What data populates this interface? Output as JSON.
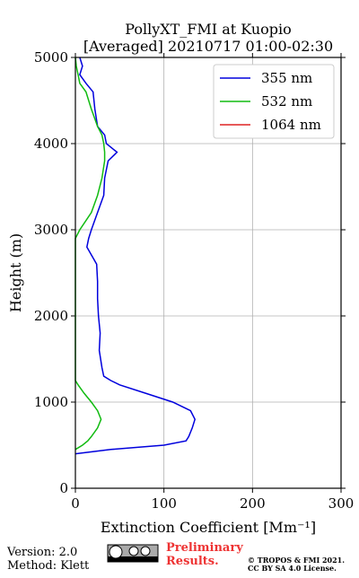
{
  "chart_data": {
    "type": "line",
    "title": [
      "PollyXT_FMI at Kuopio",
      "[Averaged] 20210717 01:00-02:30"
    ],
    "xlabel": "Extinction Coefficient [Mm⁻¹]",
    "ylabel": "Height (m)",
    "y": [
      400,
      450,
      500,
      550,
      600,
      700,
      800,
      900,
      1000,
      1100,
      1200,
      1250,
      1300,
      1400,
      1600,
      1800,
      2000,
      2200,
      2400,
      2600,
      2800,
      2900,
      3000,
      3200,
      3400,
      3600,
      3800,
      3900,
      4000,
      4100,
      4200,
      4400,
      4600,
      4700,
      4800,
      4900,
      5000
    ],
    "series": [
      {
        "name": "355 nm",
        "color": "#0000dd",
        "values": [
          0,
          40,
          100,
          125,
          128,
          132,
          135,
          130,
          110,
          80,
          50,
          40,
          32,
          30,
          27,
          28,
          26,
          25,
          25,
          24,
          13,
          15,
          18,
          25,
          32,
          33,
          37,
          47,
          35,
          33,
          25,
          22,
          20,
          12,
          5,
          8,
          5
        ]
      },
      {
        "name": "532 nm",
        "color": "#11bb11",
        "values": [
          null,
          0,
          8,
          14,
          18,
          25,
          29,
          25,
          18,
          10,
          3,
          0,
          0,
          0,
          0,
          0,
          0,
          0,
          0,
          0,
          0,
          0,
          5,
          18,
          25,
          30,
          33,
          33,
          32,
          30,
          25,
          18,
          12,
          5,
          3,
          1,
          0
        ]
      },
      {
        "name": "1064 nm",
        "color": "#dd2222",
        "values": [
          null,
          null,
          null,
          null,
          null,
          null,
          null,
          null,
          null,
          null,
          null,
          null,
          null,
          null,
          null,
          null,
          null,
          null,
          null,
          null,
          null,
          null,
          null,
          null,
          null,
          null,
          null,
          null,
          null,
          null,
          null,
          null,
          null,
          null,
          null,
          null,
          null
        ]
      }
    ],
    "xlim": [
      0,
      300
    ],
    "xticks": [
      0,
      100,
      200,
      300
    ],
    "ylim": [
      0,
      5000
    ],
    "yticks": [
      0,
      1000,
      2000,
      3000,
      4000,
      5000
    ],
    "grid": true,
    "legend": "upper right"
  },
  "footer": {
    "version": "Version: 2.0",
    "method": "Method: Klett",
    "preliminary": "Preliminary Results.",
    "copyright": "© TROPOS & FMI 2021.",
    "license": "CC BY SA 4.0 License."
  }
}
